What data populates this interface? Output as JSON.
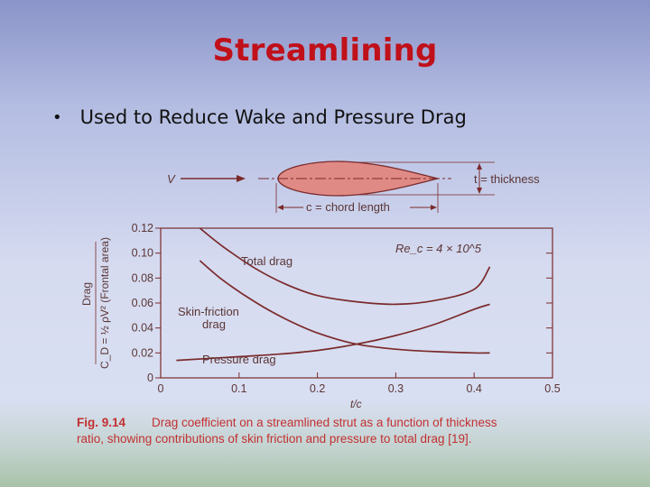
{
  "slide": {
    "title": "Streamlining",
    "bullet": "Used to Reduce Wake and Pressure Drag",
    "bullet_symbol": "•"
  },
  "figure": {
    "v_label": "V",
    "thickness_label": "t = thickness",
    "chord_label": "c = chord length",
    "reynolds_label": "Re_c = 4 × 10^5",
    "total_label": "Total drag",
    "skin_label_1": "Skin-friction",
    "skin_label_2": "drag",
    "pressure_label": "Pressure drag",
    "ylabel_top": "Drag",
    "ylabel_bottom": "C_D = ½ ρV² (Frontal area)",
    "caption_num": "Fig. 9.14",
    "caption_line1": "Drag coefficient on a streamlined strut as a function of thickness",
    "caption_line2": "ratio, showing contributions of skin friction and pressure to total drag [19].",
    "colors": {
      "foil_fill": "#e08a86",
      "curve": "#7a2a2a",
      "text": "#5a3535",
      "caption": "#c23030"
    }
  },
  "chart_data": {
    "type": "line",
    "xlabel": "t/c",
    "ylabel": "",
    "xlim": [
      0,
      0.5
    ],
    "ylim": [
      0,
      0.12
    ],
    "x_ticks": [
      "0",
      "0.1",
      "0.2",
      "0.3",
      "0.4",
      "0.5"
    ],
    "y_ticks": [
      "0",
      "0.02",
      "0.04",
      "0.06",
      "0.08",
      "0.10",
      "0.12"
    ],
    "series": [
      {
        "name": "Total drag",
        "x": [
          0.05,
          0.08,
          0.12,
          0.16,
          0.2,
          0.25,
          0.3,
          0.35,
          0.4,
          0.42
        ],
        "y": [
          0.12,
          0.105,
          0.088,
          0.075,
          0.066,
          0.061,
          0.059,
          0.062,
          0.071,
          0.089
        ]
      },
      {
        "name": "Skin-friction drag",
        "x": [
          0.05,
          0.08,
          0.12,
          0.16,
          0.2,
          0.25,
          0.3,
          0.35,
          0.4,
          0.42
        ],
        "y": [
          0.094,
          0.078,
          0.061,
          0.047,
          0.036,
          0.027,
          0.023,
          0.021,
          0.02,
          0.02
        ]
      },
      {
        "name": "Pressure drag",
        "x": [
          0.02,
          0.1,
          0.15,
          0.2,
          0.25,
          0.3,
          0.35,
          0.4,
          0.42
        ],
        "y": [
          0.014,
          0.017,
          0.019,
          0.022,
          0.027,
          0.034,
          0.043,
          0.055,
          0.059
        ]
      }
    ],
    "grid": false
  }
}
